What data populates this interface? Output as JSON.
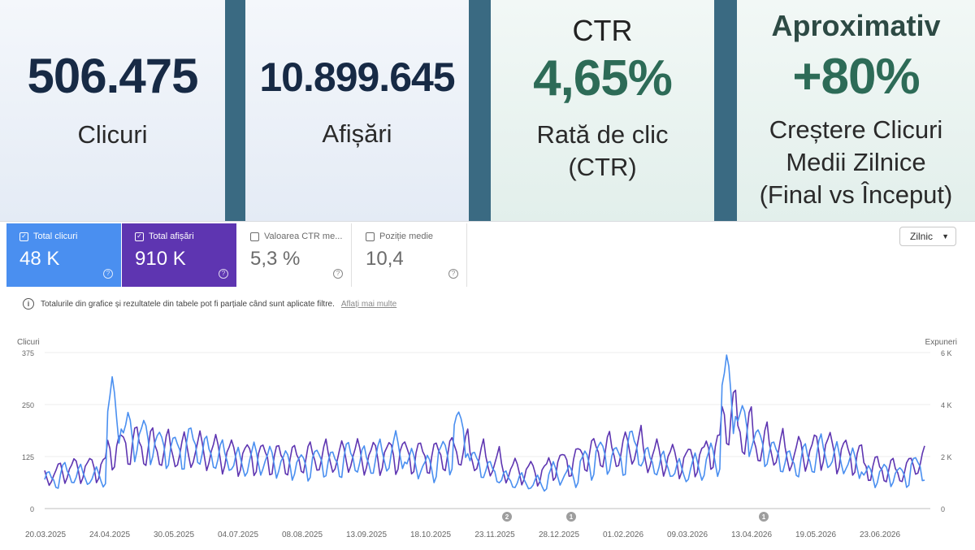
{
  "stats": [
    {
      "header": "",
      "value": "506.475",
      "label_lines": [
        "Clicuri"
      ]
    },
    {
      "header": "",
      "value": "10.899.645",
      "label_lines": [
        "Afișări"
      ]
    },
    {
      "header": "CTR",
      "value": "4,65%",
      "label_lines": [
        "Rată de clic",
        "(CTR)"
      ]
    },
    {
      "header": "Aproximativ",
      "value": "+80%",
      "label_lines": [
        "Creștere Clicuri",
        "Medii Zilnice",
        "(Final vs Început)"
      ]
    }
  ],
  "metrics": [
    {
      "label": "Total clicuri",
      "value": "48 K",
      "checked": true
    },
    {
      "label": "Total afișări",
      "value": "910 K",
      "checked": true
    },
    {
      "label": "Valoarea CTR me...",
      "value": "5,3 %",
      "checked": false
    },
    {
      "label": "Poziție medie",
      "value": "10,4",
      "checked": false
    }
  ],
  "period_select": {
    "label": "Zilnic"
  },
  "notice": {
    "text": "Totalurile din grafice și rezultatele din tabele pot fi parțiale când sunt aplicate filtre.",
    "link": "Aflați mai multe"
  },
  "colors": {
    "clicks": "#4a8ff0",
    "impressions": "#5e35b1",
    "grid": "#eeeeee",
    "axis_text": "#666666"
  },
  "chart_data": {
    "type": "line",
    "left_axis": {
      "label": "Clicuri",
      "ticks": [
        "375",
        "250",
        "125",
        "0"
      ],
      "range": [
        0,
        375
      ]
    },
    "right_axis": {
      "label": "Expuneri",
      "ticks": [
        "6 K",
        "4 K",
        "2 K",
        "0"
      ],
      "range": [
        0,
        6000
      ]
    },
    "x_tick_labels": [
      "20.03.2025",
      "24.04.2025",
      "30.05.2025",
      "04.07.2025",
      "08.08.2025",
      "13.09.2025",
      "18.10.2025",
      "23.11.2025",
      "28.12.2025",
      "01.02.2026",
      "09.03.2026",
      "13.04.2026",
      "19.05.2026",
      "23.06.2026"
    ],
    "annotations": [
      {
        "date": "23.11.2025",
        "label": "2"
      },
      {
        "date": "28.12.2025",
        "label": "1"
      },
      {
        "date": "13.04.2026",
        "label": "1"
      }
    ],
    "series": [
      {
        "name": "Total clicuri",
        "axis": "left",
        "color": "#4a8ff0",
        "weekly_values": [
          70,
          85,
          80,
          75,
          240,
          180,
          170,
          150,
          140,
          155,
          135,
          125,
          110,
          120,
          115,
          110,
          105,
          115,
          110,
          125,
          115,
          125,
          140,
          110,
          100,
          130,
          190,
          110,
          90,
          70,
          65,
          60,
          85,
          80,
          110,
          130,
          120,
          150,
          115,
          105,
          90,
          100,
          120,
          290,
          200,
          155,
          130,
          110,
          120,
          135,
          120,
          110,
          80,
          85,
          80,
          100
        ]
      },
      {
        "name": "Total afișări",
        "axis": "right",
        "color": "#5e35b1",
        "weekly_values": [
          1300,
          1500,
          1550,
          1600,
          2300,
          2500,
          2400,
          2300,
          2200,
          2250,
          2200,
          2100,
          2000,
          2000,
          1950,
          1900,
          1950,
          2000,
          1950,
          2050,
          2000,
          2050,
          2100,
          2050,
          2000,
          2100,
          2300,
          2000,
          1800,
          1500,
          1450,
          1400,
          1700,
          1850,
          2100,
          2250,
          2200,
          2400,
          2050,
          1950,
          1850,
          1950,
          2300,
          3600,
          3000,
          2500,
          2300,
          2100,
          2200,
          2350,
          2150,
          2000,
          1600,
          1500,
          1450,
          1800
        ]
      }
    ]
  }
}
